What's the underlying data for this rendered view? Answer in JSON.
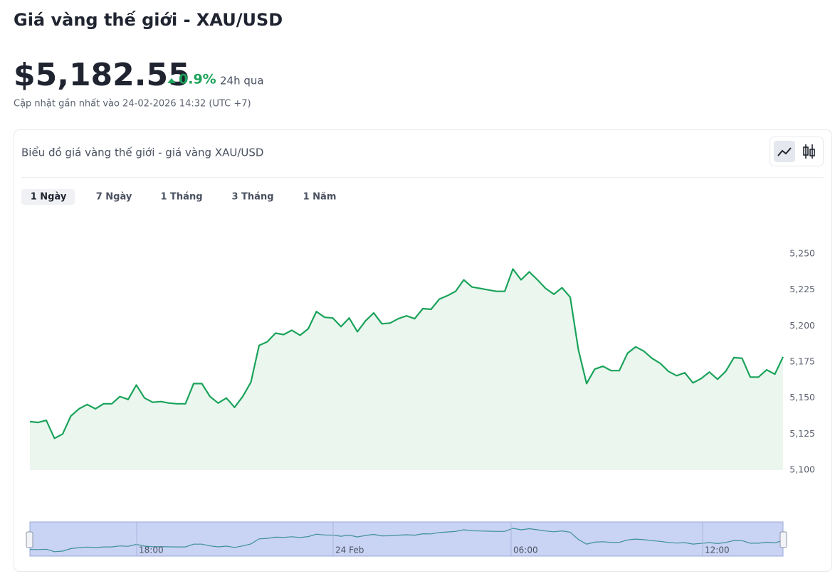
{
  "header": {
    "title": "Giá vàng thế giới - XAU/USD",
    "price": "$5,182.55",
    "change": "0.9%",
    "change_period": "24h qua",
    "updated": "Cập nhật gần nhất vào 24-02-2026 14:32 (UTC +7)"
  },
  "chart_data": {
    "type": "line",
    "title": "Biểu đồ giá vàng thế giới - giá vàng XAU/USD",
    "tabs": [
      "1 Ngày",
      "7 Ngày",
      "1 Tháng",
      "3 Tháng",
      "1 Năm"
    ],
    "values": [
      5133.6,
      5133,
      5134.5,
      5122,
      5125,
      5137.5,
      5142.5,
      5145.5,
      5142.5,
      5146,
      5146,
      5151,
      5149,
      5159,
      5150,
      5147,
      5147.5,
      5146.5,
      5146,
      5146,
      5160,
      5160,
      5151,
      5146.5,
      5150,
      5143.5,
      5151,
      5161,
      5186.5,
      5189,
      5195,
      5194,
      5197,
      5193.5,
      5198,
      5210,
      5206,
      5205.5,
      5199.5,
      5205.5,
      5196,
      5203.5,
      5209,
      5201.5,
      5202,
      5205,
      5207,
      5205,
      5212,
      5211.5,
      5218.5,
      5221,
      5224,
      5232,
      5227,
      5226,
      5225,
      5224,
      5224,
      5239.5,
      5232,
      5237.5,
      5232,
      5226,
      5222,
      5226.5,
      5220,
      5183.5,
      5160,
      5170,
      5172,
      5169,
      5169,
      5181,
      5185.5,
      5182.5,
      5177.5,
      5174,
      5168.5,
      5165.5,
      5167.5,
      5160.5,
      5163.5,
      5168,
      5163,
      5168.5,
      5178,
      5177.5,
      5164.5,
      5164.5,
      5169.5,
      5166.5,
      5178.5
    ],
    "color": "#1aa35a",
    "area_color": "#ebf6ef",
    "ylim": [
      5100,
      5250
    ],
    "yticks": [
      {
        "value": 5100,
        "label": "5,100"
      },
      {
        "value": 5125,
        "label": "5,125"
      },
      {
        "value": 5150,
        "label": "5,150"
      },
      {
        "value": 5175,
        "label": "5,175"
      },
      {
        "value": 5200,
        "label": "5,200"
      },
      {
        "value": 5225,
        "label": "5,225"
      },
      {
        "value": 5250,
        "label": "5,250"
      }
    ],
    "grid": false,
    "navigator_labels": [
      "18:00",
      "24 Feb",
      "06:00",
      "12:00"
    ]
  }
}
